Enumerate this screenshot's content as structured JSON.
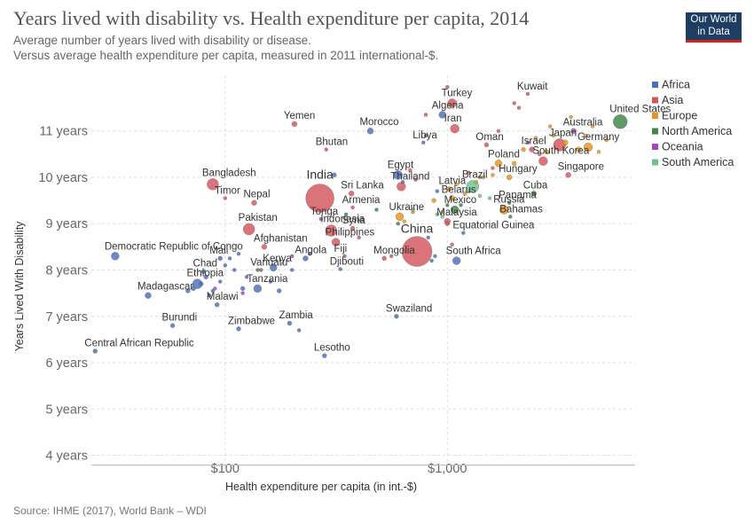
{
  "header": {
    "title": "Years lived with disability vs. Health expenditure per capita, 2014",
    "subtitle_1": "Average number of years lived with disability or disease.",
    "subtitle_2": "Versus average health expenditure per capita, measured in 2011 international-$.",
    "logo_line_1": "Our World",
    "logo_line_2": "in Data"
  },
  "footer": {
    "source": "Source: IHME (2017), World Bank – WDI"
  },
  "colors": {
    "Africa": "#4c6fbb",
    "Asia": "#d2555b",
    "Europe": "#e8941a",
    "North America": "#3e8546",
    "Oceania": "#a348b5",
    "South America": "#6cc391"
  },
  "chart_data": {
    "type": "scatter",
    "xlabel": "Health expenditure per capita (in int.-$)",
    "ylabel": "Years Lived With Disability",
    "x_scale": "log",
    "xlim": [
      25,
      7000
    ],
    "ylim": [
      3.8,
      12.2
    ],
    "x_ticks": [
      {
        "value": 100,
        "label": "$100"
      },
      {
        "value": 1000,
        "label": "$1,000"
      }
    ],
    "y_ticks": [
      {
        "value": 4,
        "label": "4 years"
      },
      {
        "value": 5,
        "label": "5 years"
      },
      {
        "value": 6,
        "label": "6 years"
      },
      {
        "value": 7,
        "label": "7 years"
      },
      {
        "value": 8,
        "label": "8 years"
      },
      {
        "value": 9,
        "label": "9 years"
      },
      {
        "value": 10,
        "label": "10 years"
      },
      {
        "value": 11,
        "label": "11 years"
      }
    ],
    "grid": true,
    "legend": {
      "position": "right",
      "entries": [
        "Africa",
        "Asia",
        "Europe",
        "North America",
        "Oceania",
        "South America"
      ]
    },
    "labeled_points": [
      {
        "label": "India",
        "x": 267,
        "y": 9.55,
        "region": "Asia",
        "size": 16,
        "label_dx": 0,
        "label_dy": -22
      },
      {
        "label": "China",
        "x": 730,
        "y": 8.4,
        "region": "Asia",
        "size": 17,
        "label_dx": 0,
        "label_dy": -21
      },
      {
        "label": "Bangladesh",
        "x": 88,
        "y": 9.85,
        "region": "Asia",
        "size": 6.5
      },
      {
        "label": "Pakistan",
        "x": 128,
        "y": 8.88,
        "region": "Asia",
        "size": 6.5
      },
      {
        "label": "Democratic Republic of Congo",
        "x": 32,
        "y": 8.3,
        "region": "Africa",
        "size": 4.5
      },
      {
        "label": "Afghanistan",
        "x": 150,
        "y": 8.5,
        "region": "Asia",
        "size": 3
      },
      {
        "label": "Chad",
        "x": 80,
        "y": 7.97,
        "region": "Africa",
        "size": 2.5
      },
      {
        "label": "Mali",
        "x": 95,
        "y": 8.25,
        "region": "Africa",
        "size": 2.5
      },
      {
        "label": "Ethiopia",
        "x": 75,
        "y": 7.7,
        "region": "Africa",
        "size": 5.5
      },
      {
        "label": "Madagascar",
        "x": 45,
        "y": 7.45,
        "region": "Africa",
        "size": 3.5
      },
      {
        "label": "Malawi",
        "x": 92,
        "y": 7.25,
        "region": "Africa",
        "size": 2.5
      },
      {
        "label": "Burundi",
        "x": 58,
        "y": 6.8,
        "region": "Africa",
        "size": 2.5
      },
      {
        "label": "Central African Republic",
        "x": 26,
        "y": 6.25,
        "region": "Africa",
        "size": 2.5
      },
      {
        "label": "Zimbabwe",
        "x": 115,
        "y": 6.73,
        "region": "Africa",
        "size": 2.5
      },
      {
        "label": "Zambia",
        "x": 195,
        "y": 6.85,
        "region": "Africa",
        "size": 2.5
      },
      {
        "label": "Lesotho",
        "x": 280,
        "y": 6.15,
        "region": "Africa",
        "size": 2.5
      },
      {
        "label": "Swaziland",
        "x": 590,
        "y": 7.0,
        "region": "Africa",
        "size": 2.5
      },
      {
        "label": "Tanzania",
        "x": 140,
        "y": 7.6,
        "region": "Africa",
        "size": 4.5
      },
      {
        "label": "Vanuatu",
        "x": 145,
        "y": 8.0,
        "region": "Oceania",
        "size": 2
      },
      {
        "label": "Kenya",
        "x": 165,
        "y": 8.05,
        "region": "Africa",
        "size": 4
      },
      {
        "label": "Angola",
        "x": 230,
        "y": 8.25,
        "region": "Africa",
        "size": 3
      },
      {
        "label": "Fiji",
        "x": 345,
        "y": 8.3,
        "region": "Oceania",
        "size": 2
      },
      {
        "label": "Djibouti",
        "x": 330,
        "y": 8.02,
        "region": "Africa",
        "size": 2
      },
      {
        "label": "Philippines",
        "x": 315,
        "y": 8.6,
        "region": "Asia",
        "size": 4.5
      },
      {
        "label": "Indonesia",
        "x": 300,
        "y": 8.85,
        "region": "Asia",
        "size": 6.5
      },
      {
        "label": "Syria",
        "x": 375,
        "y": 8.9,
        "region": "Asia",
        "size": 2.5
      },
      {
        "label": "Tonga",
        "x": 270,
        "y": 9.1,
        "region": "Oceania",
        "size": 2
      },
      {
        "label": "Armenia",
        "x": 375,
        "y": 9.35,
        "region": "Asia",
        "size": 2
      },
      {
        "label": "Sri Lanka",
        "x": 370,
        "y": 9.65,
        "region": "Asia",
        "size": 3
      },
      {
        "label": "Nepal",
        "x": 135,
        "y": 9.45,
        "region": "Asia",
        "size": 3
      },
      {
        "label": "Timor",
        "x": 100,
        "y": 9.55,
        "region": "Asia",
        "size": 2
      },
      {
        "label": "Bhutan",
        "x": 285,
        "y": 10.6,
        "region": "Asia",
        "size": 2
      },
      {
        "label": "Yemen",
        "x": 205,
        "y": 11.15,
        "region": "Asia",
        "size": 3
      },
      {
        "label": "Morocco",
        "x": 450,
        "y": 11.0,
        "region": "Africa",
        "size": 3.5
      },
      {
        "label": "Egypt",
        "x": 600,
        "y": 10.05,
        "region": "Africa",
        "size": 5
      },
      {
        "label": "Thailand",
        "x": 620,
        "y": 9.8,
        "region": "Asia",
        "size": 5
      },
      {
        "label": "Libya",
        "x": 780,
        "y": 10.75,
        "region": "Africa",
        "size": 2
      },
      {
        "label": "Turkey",
        "x": 1050,
        "y": 11.6,
        "region": "Asia",
        "size": 5
      },
      {
        "label": "Algeria",
        "x": 950,
        "y": 11.35,
        "region": "Africa",
        "size": 4
      },
      {
        "label": "Iran",
        "x": 1080,
        "y": 11.05,
        "region": "Asia",
        "size": 5
      },
      {
        "label": "Ukraine",
        "x": 610,
        "y": 9.15,
        "region": "Europe",
        "size": 4.5
      },
      {
        "label": "Mongolia",
        "x": 520,
        "y": 8.25,
        "region": "Asia",
        "size": 2.5
      },
      {
        "label": "Latvia",
        "x": 1020,
        "y": 9.75,
        "region": "Europe",
        "size": 2.5
      },
      {
        "label": "Brazil",
        "x": 1300,
        "y": 9.8,
        "region": "South America",
        "size": 7
      },
      {
        "label": "Belarus",
        "x": 1050,
        "y": 9.55,
        "region": "Europe",
        "size": 3
      },
      {
        "label": "Mexico",
        "x": 1080,
        "y": 9.3,
        "region": "North America",
        "size": 4.5
      },
      {
        "label": "Malaysia",
        "x": 1000,
        "y": 9.05,
        "region": "Asia",
        "size": 3.5
      },
      {
        "label": "Equatorial Guinea",
        "x": 1180,
        "y": 8.8,
        "region": "Africa",
        "size": 2
      },
      {
        "label": "South Africa",
        "x": 1100,
        "y": 8.2,
        "region": "Africa",
        "size": 4.5
      },
      {
        "label": "Panama",
        "x": 1900,
        "y": 9.45,
        "region": "North America",
        "size": 2
      },
      {
        "label": "Russia",
        "x": 1800,
        "y": 9.3,
        "region": "Europe",
        "size": 5
      },
      {
        "label": "Bahamas",
        "x": 1920,
        "y": 9.15,
        "region": "North America",
        "size": 2
      },
      {
        "label": "Cuba",
        "x": 2450,
        "y": 9.65,
        "region": "North America",
        "size": 3
      },
      {
        "label": "Hungary",
        "x": 1900,
        "y": 10.0,
        "region": "Europe",
        "size": 3
      },
      {
        "label": "Poland",
        "x": 1700,
        "y": 10.3,
        "region": "Europe",
        "size": 4
      },
      {
        "label": "Oman",
        "x": 1500,
        "y": 10.7,
        "region": "Asia",
        "size": 2.5
      },
      {
        "label": "Singapore",
        "x": 3500,
        "y": 10.05,
        "region": "Asia",
        "size": 3
      },
      {
        "label": "South Korea",
        "x": 2700,
        "y": 10.35,
        "region": "Asia",
        "size": 5
      },
      {
        "label": "Israel",
        "x": 2400,
        "y": 10.6,
        "region": "Asia",
        "size": 3
      },
      {
        "label": "Japan",
        "x": 3200,
        "y": 10.7,
        "region": "Asia",
        "size": 7
      },
      {
        "label": "Germany",
        "x": 4300,
        "y": 10.65,
        "region": "Europe",
        "size": 5
      },
      {
        "label": "Australia",
        "x": 3700,
        "y": 11.0,
        "region": "Oceania",
        "size": 3
      },
      {
        "label": "Kuwait",
        "x": 2300,
        "y": 11.8,
        "region": "Asia",
        "size": 2
      },
      {
        "label": "United States",
        "x": 6000,
        "y": 11.2,
        "region": "North America",
        "size": 8
      }
    ],
    "unlabeled_points": [
      {
        "x": 68,
        "y": 7.55,
        "region": "Africa",
        "size": 2.5
      },
      {
        "x": 72,
        "y": 7.6,
        "region": "Africa",
        "size": 2.5
      },
      {
        "x": 78,
        "y": 7.7,
        "region": "Africa",
        "size": 2.5
      },
      {
        "x": 82,
        "y": 7.85,
        "region": "Africa",
        "size": 2.5
      },
      {
        "x": 85,
        "y": 7.45,
        "region": "Africa",
        "size": 2
      },
      {
        "x": 88,
        "y": 7.55,
        "region": "Africa",
        "size": 2
      },
      {
        "x": 95,
        "y": 7.75,
        "region": "Africa",
        "size": 2
      },
      {
        "x": 100,
        "y": 8.1,
        "region": "Africa",
        "size": 2
      },
      {
        "x": 110,
        "y": 8.0,
        "region": "Africa",
        "size": 2
      },
      {
        "x": 120,
        "y": 7.6,
        "region": "Africa",
        "size": 2.5
      },
      {
        "x": 125,
        "y": 7.85,
        "region": "Africa",
        "size": 2
      },
      {
        "x": 160,
        "y": 7.75,
        "region": "Africa",
        "size": 2
      },
      {
        "x": 175,
        "y": 7.55,
        "region": "Africa",
        "size": 2.5
      },
      {
        "x": 200,
        "y": 8.0,
        "region": "Africa",
        "size": 2
      },
      {
        "x": 215,
        "y": 6.7,
        "region": "Africa",
        "size": 2
      },
      {
        "x": 240,
        "y": 8.35,
        "region": "Africa",
        "size": 2
      },
      {
        "x": 105,
        "y": 8.25,
        "region": "Africa",
        "size": 2
      },
      {
        "x": 115,
        "y": 8.35,
        "region": "Africa",
        "size": 2
      },
      {
        "x": 310,
        "y": 10.05,
        "region": "Africa",
        "size": 2.5
      },
      {
        "x": 630,
        "y": 9.9,
        "region": "Africa",
        "size": 2
      },
      {
        "x": 800,
        "y": 10.9,
        "region": "Africa",
        "size": 2
      },
      {
        "x": 820,
        "y": 8.7,
        "region": "Africa",
        "size": 2
      },
      {
        "x": 880,
        "y": 8.3,
        "region": "Africa",
        "size": 2
      },
      {
        "x": 850,
        "y": 8.2,
        "region": "Africa",
        "size": 2
      },
      {
        "x": 900,
        "y": 9.7,
        "region": "Africa",
        "size": 2
      },
      {
        "x": 1050,
        "y": 8.55,
        "region": "Asia",
        "size": 2
      },
      {
        "x": 1000,
        "y": 11.95,
        "region": "Asia",
        "size": 2
      },
      {
        "x": 680,
        "y": 10.15,
        "region": "Asia",
        "size": 2
      },
      {
        "x": 720,
        "y": 9.95,
        "region": "Asia",
        "size": 2
      },
      {
        "x": 1000,
        "y": 9.0,
        "region": "Asia",
        "size": 2.5
      },
      {
        "x": 400,
        "y": 8.7,
        "region": "Asia",
        "size": 2
      },
      {
        "x": 560,
        "y": 8.3,
        "region": "Asia",
        "size": 2
      },
      {
        "x": 800,
        "y": 11.35,
        "region": "Asia",
        "size": 2
      },
      {
        "x": 1250,
        "y": 10.1,
        "region": "Asia",
        "size": 2
      },
      {
        "x": 1700,
        "y": 11.0,
        "region": "Asia",
        "size": 2
      },
      {
        "x": 2000,
        "y": 11.6,
        "region": "Asia",
        "size": 2
      },
      {
        "x": 2100,
        "y": 11.5,
        "region": "Asia",
        "size": 2
      },
      {
        "x": 2600,
        "y": 10.5,
        "region": "Asia",
        "size": 2
      },
      {
        "x": 2300,
        "y": 10.75,
        "region": "Asia",
        "size": 2
      },
      {
        "x": 1600,
        "y": 10.2,
        "region": "Asia",
        "size": 2
      },
      {
        "x": 950,
        "y": 9.25,
        "region": "Europe",
        "size": 2
      },
      {
        "x": 870,
        "y": 9.5,
        "region": "Europe",
        "size": 2.5
      },
      {
        "x": 1200,
        "y": 9.65,
        "region": "Europe",
        "size": 2
      },
      {
        "x": 1350,
        "y": 9.9,
        "region": "Europe",
        "size": 2
      },
      {
        "x": 1450,
        "y": 10.0,
        "region": "Europe",
        "size": 2
      },
      {
        "x": 1600,
        "y": 10.05,
        "region": "Europe",
        "size": 2
      },
      {
        "x": 2000,
        "y": 10.3,
        "region": "Europe",
        "size": 2.5
      },
      {
        "x": 2200,
        "y": 10.6,
        "region": "Europe",
        "size": 2.5
      },
      {
        "x": 2500,
        "y": 10.85,
        "region": "Europe",
        "size": 2
      },
      {
        "x": 2800,
        "y": 10.55,
        "region": "Europe",
        "size": 2.5
      },
      {
        "x": 3000,
        "y": 10.9,
        "region": "Europe",
        "size": 2
      },
      {
        "x": 3400,
        "y": 10.75,
        "region": "Europe",
        "size": 3
      },
      {
        "x": 3900,
        "y": 10.6,
        "region": "Europe",
        "size": 3
      },
      {
        "x": 4200,
        "y": 10.9,
        "region": "Europe",
        "size": 2
      },
      {
        "x": 4500,
        "y": 11.1,
        "region": "Europe",
        "size": 2
      },
      {
        "x": 4800,
        "y": 10.55,
        "region": "Europe",
        "size": 2
      },
      {
        "x": 5200,
        "y": 10.8,
        "region": "Europe",
        "size": 2
      },
      {
        "x": 3600,
        "y": 11.3,
        "region": "Europe",
        "size": 2
      },
      {
        "x": 2900,
        "y": 11.1,
        "region": "Europe",
        "size": 2
      },
      {
        "x": 1100,
        "y": 9.85,
        "region": "Europe",
        "size": 2
      },
      {
        "x": 640,
        "y": 9.05,
        "region": "Europe",
        "size": 2
      },
      {
        "x": 700,
        "y": 9.25,
        "region": "Europe",
        "size": 2
      },
      {
        "x": 1150,
        "y": 9.4,
        "region": "North America",
        "size": 2
      },
      {
        "x": 1000,
        "y": 9.4,
        "region": "North America",
        "size": 2
      },
      {
        "x": 480,
        "y": 9.3,
        "region": "North America",
        "size": 2
      },
      {
        "x": 350,
        "y": 9.2,
        "region": "North America",
        "size": 2
      },
      {
        "x": 140,
        "y": 8.0,
        "region": "North America",
        "size": 2
      },
      {
        "x": 600,
        "y": 9.0,
        "region": "North America",
        "size": 2
      },
      {
        "x": 900,
        "y": 9.2,
        "region": "South America",
        "size": 2
      },
      {
        "x": 1250,
        "y": 9.7,
        "region": "South America",
        "size": 2
      },
      {
        "x": 1400,
        "y": 9.6,
        "region": "South America",
        "size": 2
      },
      {
        "x": 700,
        "y": 9.3,
        "region": "South America",
        "size": 2
      },
      {
        "x": 950,
        "y": 9.15,
        "region": "South America",
        "size": 2
      },
      {
        "x": 1550,
        "y": 9.55,
        "region": "South America",
        "size": 2
      },
      {
        "x": 1400,
        "y": 10.0,
        "region": "South America",
        "size": 2
      },
      {
        "x": 120,
        "y": 7.5,
        "region": "Oceania",
        "size": 2
      },
      {
        "x": 90,
        "y": 7.6,
        "region": "Oceania",
        "size": 2
      },
      {
        "x": 200,
        "y": 8.3,
        "region": "Oceania",
        "size": 2
      }
    ]
  }
}
